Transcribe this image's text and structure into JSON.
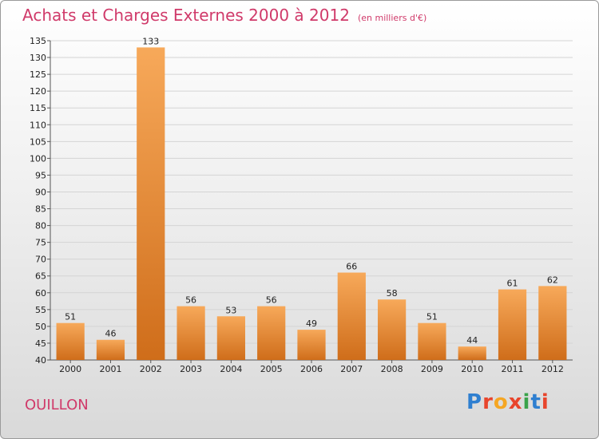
{
  "title": "Achats et Charges Externes 2000 à 2012",
  "subtitle": "(en milliers d'€)",
  "city": "OUILLON",
  "brand": {
    "letters": [
      "P",
      "r",
      "o",
      "x",
      "i",
      "t",
      "i"
    ],
    "colors": [
      "#2f7fd0",
      "#e8452c",
      "#f5a623",
      "#e8452c",
      "#3aa24a",
      "#2f7fd0",
      "#e8452c"
    ]
  },
  "colors": {
    "title": "#d03a6a",
    "bar_top": "#f7a95a",
    "bar_bottom": "#cf6d1a"
  },
  "chart_data": {
    "type": "bar",
    "title": "Achats et Charges Externes 2000 à 2012",
    "categories": [
      "2000",
      "2001",
      "2002",
      "2003",
      "2004",
      "2005",
      "2006",
      "2007",
      "2008",
      "2009",
      "2010",
      "2011",
      "2012"
    ],
    "values": [
      51,
      46,
      133,
      56,
      53,
      56,
      49,
      66,
      58,
      51,
      44,
      61,
      62
    ],
    "ylim": [
      40,
      135
    ],
    "yticks": [
      40,
      45,
      50,
      55,
      60,
      65,
      70,
      75,
      80,
      85,
      90,
      95,
      100,
      105,
      110,
      115,
      120,
      125,
      130,
      135
    ],
    "grid": true,
    "xlabel": "",
    "ylabel": ""
  }
}
